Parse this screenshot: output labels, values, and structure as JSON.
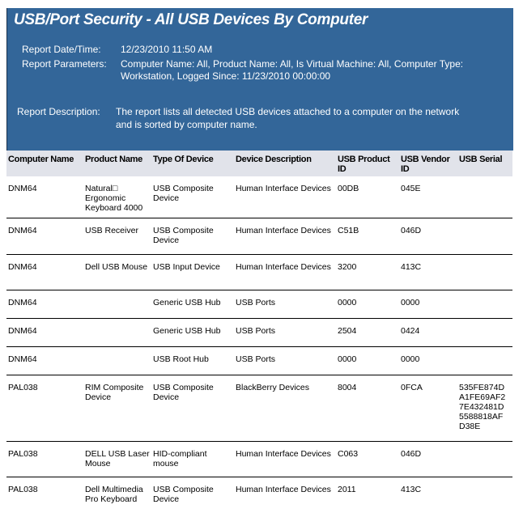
{
  "title": "USB/Port Security - All USB Devices By Computer",
  "report": {
    "datetime_label": "Report Date/Time:",
    "datetime_value": "12/23/2010 11:50 AM",
    "params_label": "Report Parameters:",
    "params_line1": "Computer Name:  All, Product Name:  All, Is Virtual Machine:  All, Computer Type:",
    "params_line2": "Workstation, Logged Since:  11/23/2010 00:00:00",
    "desc_label": "Report Description:",
    "desc_line1": "The report lists all detected USB devices attached to a computer on the network",
    "desc_line2": "and is sorted by computer name."
  },
  "columns": [
    "Computer Name",
    "Product Name",
    "Type Of Device",
    "Device Description",
    "USB Product ID",
    "USB Vendor ID",
    "USB Serial"
  ],
  "rows": [
    [
      "DNM64",
      "Natural□ Ergonomic Keyboard 4000",
      "USB Composite Device",
      "Human Interface Devices",
      "00DB",
      "045E",
      ""
    ],
    [
      "DNM64",
      "USB Receiver",
      "USB Composite Device",
      "Human Interface Devices",
      "C51B",
      "046D",
      ""
    ],
    [
      "DNM64",
      "Dell USB Mouse",
      "USB Input Device",
      "Human Interface Devices",
      "3200",
      "413C",
      ""
    ],
    [
      "DNM64",
      "",
      "Generic USB Hub",
      "USB Ports",
      "0000",
      "0000",
      ""
    ],
    [
      "DNM64",
      "",
      "Generic USB Hub",
      "USB Ports",
      "2504",
      "0424",
      ""
    ],
    [
      "DNM64",
      "",
      "USB Root Hub",
      "USB Ports",
      "0000",
      "0000",
      ""
    ],
    [
      "PAL038",
      "RIM Composite Device",
      "USB Composite Device",
      "BlackBerry Devices",
      "8004",
      "0FCA",
      "535FE874D A1FE69AF2 7E432481D 5588818AF D38E"
    ],
    [
      "PAL038",
      "DELL USB Laser Mouse",
      "HID-compliant mouse",
      "Human Interface Devices",
      "C063",
      "046D",
      ""
    ],
    [
      "PAL038",
      "Dell Multimedia Pro Keyboard",
      "USB Composite Device",
      "Human Interface Devices",
      "2011",
      "413C",
      ""
    ]
  ]
}
